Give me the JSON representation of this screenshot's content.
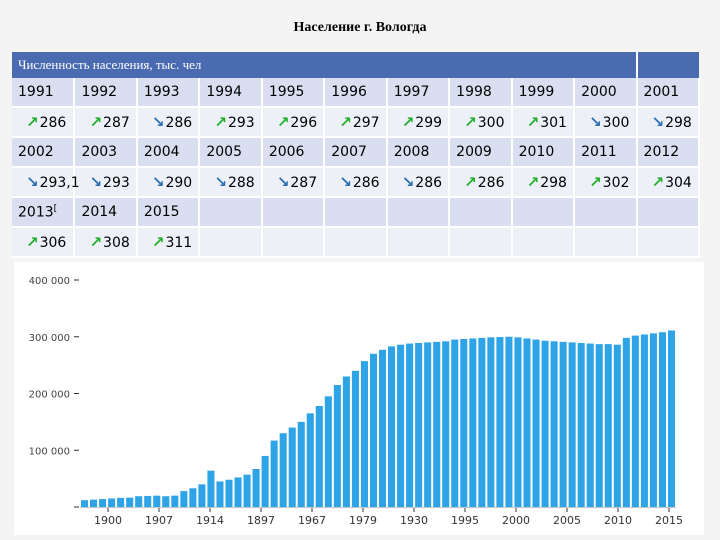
{
  "title": "Население г. Вологда",
  "table": {
    "header": "Численность населения, тыс. чел",
    "blocks": [
      {
        "years": [
          "1991",
          "1992",
          "1993",
          "1994",
          "1995",
          "1996",
          "1997",
          "1998",
          "1999",
          "2000",
          "2001"
        ],
        "values": [
          {
            "dir": "up",
            "text": "286"
          },
          {
            "dir": "up",
            "text": "287"
          },
          {
            "dir": "down",
            "text": "286"
          },
          {
            "dir": "up",
            "text": "293"
          },
          {
            "dir": "up",
            "text": "296"
          },
          {
            "dir": "up",
            "text": "297"
          },
          {
            "dir": "up",
            "text": "299"
          },
          {
            "dir": "up",
            "text": "300"
          },
          {
            "dir": "up",
            "text": "301"
          },
          {
            "dir": "down",
            "text": "300"
          },
          {
            "dir": "down",
            "text": "298"
          }
        ]
      },
      {
        "years": [
          "2002",
          "2003",
          "2004",
          "2005",
          "2006",
          "2007",
          "2008",
          "2009",
          "2010",
          "2011",
          "2012"
        ],
        "values": [
          {
            "dir": "down",
            "text": "293,1"
          },
          {
            "dir": "down",
            "text": "293"
          },
          {
            "dir": "down",
            "text": "290"
          },
          {
            "dir": "down",
            "text": "288"
          },
          {
            "dir": "down",
            "text": "287"
          },
          {
            "dir": "down",
            "text": "286"
          },
          {
            "dir": "down",
            "text": "286"
          },
          {
            "dir": "up",
            "text": "286"
          },
          {
            "dir": "up",
            "text": "298"
          },
          {
            "dir": "up",
            "text": "302"
          },
          {
            "dir": "up",
            "text": "304"
          }
        ]
      },
      {
        "years": [
          "2013",
          "2014",
          "2015",
          "",
          "",
          "",
          "",
          "",
          "",
          "",
          ""
        ],
        "footnote": "[",
        "values": [
          {
            "dir": "up",
            "text": "306"
          },
          {
            "dir": "up",
            "text": "308"
          },
          {
            "dir": "up",
            "text": "311"
          },
          {
            "dir": "",
            "text": ""
          },
          {
            "dir": "",
            "text": ""
          },
          {
            "dir": "",
            "text": ""
          },
          {
            "dir": "",
            "text": ""
          },
          {
            "dir": "",
            "text": ""
          },
          {
            "dir": "",
            "text": ""
          },
          {
            "dir": "",
            "text": ""
          },
          {
            "dir": "",
            "text": ""
          }
        ]
      }
    ]
  },
  "colors": {
    "bar": "#2ea3e6",
    "header": "#4a6bb0",
    "up": "#22b02a",
    "down": "#2a6fb5"
  },
  "chart_data": {
    "type": "bar",
    "ylim": [
      0,
      400000
    ],
    "yticks": [
      0,
      100000,
      200000,
      300000,
      400000
    ],
    "ytick_labels": [
      "",
      "100 000",
      "200 000",
      "300 000",
      "400 000"
    ],
    "xtick_labels": [
      "1900",
      "1907",
      "1914",
      "1897",
      "1967",
      "1979",
      "1930",
      "1995",
      "2000",
      "2005",
      "2010",
      "2015"
    ],
    "values": [
      12000,
      13000,
      14000,
      15000,
      16000,
      16500,
      19000,
      19500,
      20000,
      19000,
      20000,
      28000,
      33000,
      40000,
      64000,
      45000,
      48000,
      52000,
      57000,
      67000,
      90000,
      117000,
      130000,
      140000,
      150000,
      165000,
      178000,
      195000,
      215000,
      230000,
      240000,
      257000,
      270000,
      277000,
      283000,
      286000,
      288000,
      289000,
      290000,
      291000,
      292000,
      295000,
      296000,
      297000,
      298000,
      299000,
      299500,
      300000,
      299000,
      297000,
      295000,
      293000,
      292000,
      291000,
      290000,
      289000,
      288000,
      287000,
      287000,
      286000,
      298000,
      302000,
      304000,
      306000,
      308000,
      311000
    ]
  }
}
